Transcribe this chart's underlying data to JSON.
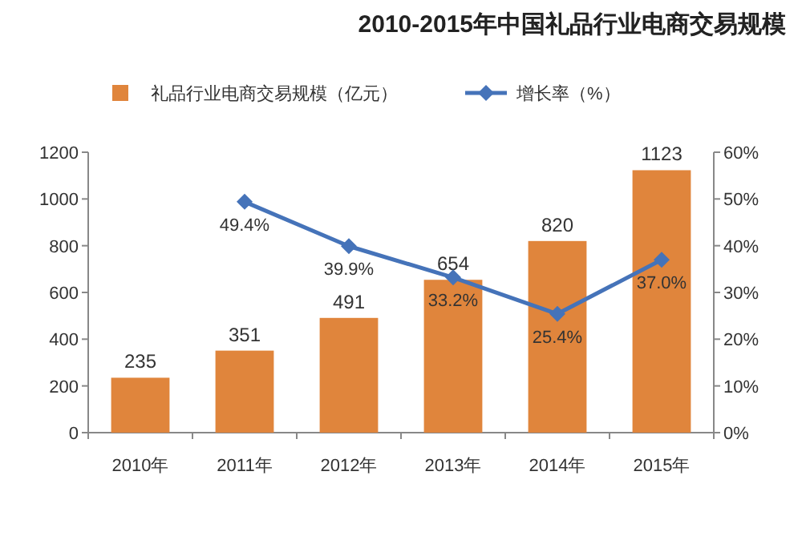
{
  "chart_data": {
    "type": "bar",
    "title": "2010-2015年中国礼品行业电商交易规模",
    "categories": [
      "2010年",
      "2011年",
      "2012年",
      "2013年",
      "2014年",
      "2015年"
    ],
    "series": [
      {
        "name": "礼品行业电商交易规模（亿元）",
        "color": "#e0853c",
        "values": [
          235,
          351,
          491,
          654,
          820,
          1123
        ],
        "value_labels": [
          "235",
          "351",
          "491",
          "654",
          "820",
          "1123"
        ]
      },
      {
        "name": "增长率（%）",
        "type": "line",
        "axis": "y2",
        "color": "#4573b9",
        "marker": "diamond",
        "values": [
          null,
          49.4,
          39.9,
          33.2,
          25.4,
          37.0
        ],
        "value_labels": [
          null,
          "49.4%",
          "39.9%",
          "33.2%",
          "25.4%",
          "37.0%"
        ]
      }
    ],
    "ylim": [
      0,
      1200
    ],
    "yticks": [
      0,
      200,
      400,
      600,
      800,
      1000,
      1200
    ],
    "y2lim": [
      0,
      60
    ],
    "y2ticks": [
      {
        "value": 0,
        "label": "0%"
      },
      {
        "value": 10,
        "label": "10%"
      },
      {
        "value": 20,
        "label": "20%"
      },
      {
        "value": 30,
        "label": "30%"
      },
      {
        "value": 40,
        "label": "40%"
      },
      {
        "value": 50,
        "label": "50%"
      },
      {
        "value": 60,
        "label": "60%"
      }
    ],
    "legend": "top",
    "grid": false
  }
}
